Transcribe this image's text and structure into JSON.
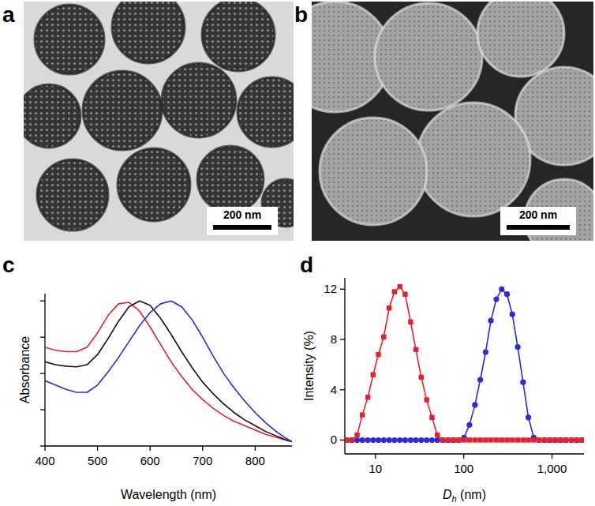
{
  "images": [
    {
      "label": "a",
      "scale_bar": "200 nm"
    },
    {
      "label": "b",
      "scale_bar": "200 nm"
    }
  ],
  "chart_data": [
    {
      "type": "line",
      "title": "c",
      "x_label": "Wavelength (nm)",
      "y_label": "Absorbance",
      "x": [
        400,
        420,
        440,
        460,
        480,
        500,
        520,
        540,
        560,
        580,
        600,
        620,
        640,
        660,
        680,
        700,
        720,
        740,
        760,
        780,
        800,
        820,
        840,
        860,
        870
      ],
      "series": [
        {
          "color": "#e8202a",
          "values": [
            0.68,
            0.66,
            0.65,
            0.65,
            0.68,
            0.78,
            0.9,
            0.98,
            0.99,
            0.93,
            0.82,
            0.7,
            0.58,
            0.48,
            0.39,
            0.32,
            0.26,
            0.21,
            0.17,
            0.14,
            0.11,
            0.08,
            0.06,
            0.04,
            0.03
          ]
        },
        {
          "color": "#111111",
          "values": [
            0.58,
            0.56,
            0.55,
            0.545,
            0.56,
            0.63,
            0.74,
            0.86,
            0.96,
            1.0,
            0.97,
            0.88,
            0.77,
            0.65,
            0.54,
            0.44,
            0.36,
            0.29,
            0.23,
            0.18,
            0.14,
            0.1,
            0.07,
            0.04,
            0.03
          ]
        },
        {
          "color": "#2a2ae0",
          "values": [
            0.45,
            0.42,
            0.39,
            0.37,
            0.37,
            0.42,
            0.51,
            0.61,
            0.72,
            0.83,
            0.92,
            0.98,
            1.0,
            0.96,
            0.87,
            0.75,
            0.62,
            0.5,
            0.4,
            0.31,
            0.23,
            0.16,
            0.1,
            0.05,
            0.03
          ]
        }
      ],
      "xlim": [
        400,
        870
      ],
      "xticks": [
        400,
        500,
        600,
        700,
        800
      ],
      "ylim": [
        0,
        1.05
      ],
      "yticks": [
        0,
        0.25,
        0.5,
        0.75,
        1
      ],
      "tick_labels": "x",
      "grid": false
    },
    {
      "type": "line",
      "title": "d",
      "x_label": "Dh (nm)",
      "y_label": "Intensity (%)",
      "log": "x",
      "x": [
        4.7,
        5.4,
        6.2,
        7.1,
        8.2,
        9.4,
        10.8,
        12.4,
        14.3,
        16.4,
        18.9,
        21.7,
        25.0,
        28.7,
        33.0,
        38.0,
        43.7,
        50.2,
        57.8,
        66.4,
        76.4,
        87.8,
        101,
        116,
        134,
        154,
        177,
        203,
        234,
        269,
        309,
        355,
        409,
        470,
        540,
        621,
        714,
        822,
        945,
        1087,
        1250,
        1438,
        1653,
        1901,
        2186
      ],
      "series": [
        {
          "color": "#2a2ae0",
          "marker": "circle",
          "values": [
            0,
            0,
            0,
            0,
            0,
            0,
            0,
            0,
            0,
            0,
            0,
            0,
            0,
            0,
            0,
            0,
            0,
            0,
            0,
            0,
            0,
            0,
            0.2,
            1.2,
            2.8,
            4.8,
            7.0,
            9.5,
            11.2,
            12.0,
            11.6,
            10.0,
            7.4,
            4.6,
            1.8,
            0.2,
            0,
            0,
            0,
            0,
            0,
            0,
            0,
            0,
            0
          ]
        },
        {
          "color": "#e8202a",
          "marker": "square",
          "values": [
            0,
            0,
            0.4,
            2.0,
            3.4,
            5.2,
            6.8,
            8.2,
            10.5,
            11.8,
            12.2,
            11.6,
            9.4,
            7.2,
            5.0,
            3.2,
            1.8,
            0.4,
            0,
            0,
            0,
            0,
            0,
            0,
            0,
            0,
            0,
            0,
            0,
            0,
            0,
            0,
            0,
            0,
            0,
            0,
            0,
            0,
            0,
            0,
            0,
            0,
            0,
            0,
            0
          ]
        }
      ],
      "xlim": [
        4.5,
        2300
      ],
      "xticks": [
        10,
        100,
        {
          "value": 1000,
          "label": "1,000"
        }
      ],
      "ylim": [
        -1.1,
        12.9
      ],
      "yticks": [
        0,
        4,
        8,
        12
      ],
      "grid": false
    }
  ]
}
